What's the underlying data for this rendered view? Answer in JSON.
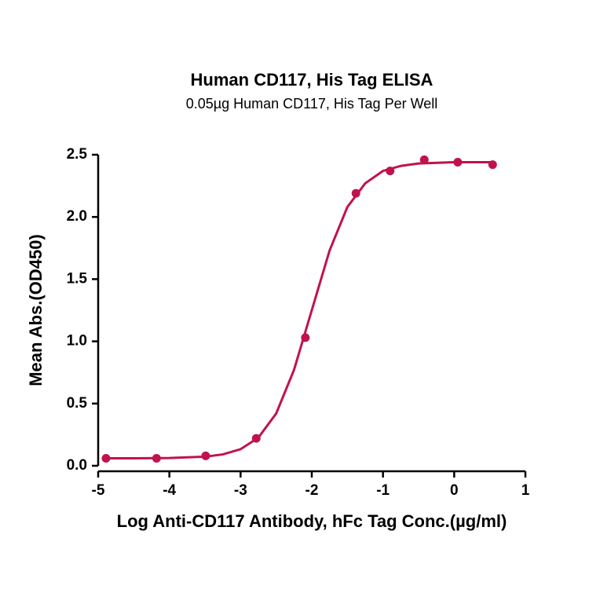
{
  "chart_data": {
    "type": "scatter",
    "title": "Human CD117, His Tag ELISA",
    "subtitle": "0.05µg Human CD117, His Tag Per Well",
    "xlabel": "Log Anti-CD117 Antibody, hFc Tag Conc.(µg/ml)",
    "ylabel": "Mean Abs.(OD450)",
    "color": "#c0134b",
    "x": [
      -4.89,
      -4.18,
      -3.49,
      -2.78,
      -2.09,
      -1.38,
      -0.9,
      -0.42,
      0.05,
      0.54
    ],
    "values": [
      0.06,
      0.06,
      0.08,
      0.22,
      1.03,
      2.19,
      2.37,
      2.46,
      2.44,
      2.42
    ],
    "curve": {
      "x": [
        -4.89,
        -4.5,
        -4,
        -3.5,
        -3.25,
        -3,
        -2.75,
        -2.5,
        -2.25,
        -2,
        -1.75,
        -1.5,
        -1.25,
        -1,
        -0.75,
        -0.5,
        0,
        0.54
      ],
      "values": [
        0.06,
        0.06,
        0.062,
        0.073,
        0.091,
        0.133,
        0.226,
        0.42,
        0.77,
        1.25,
        1.73,
        2.08,
        2.27,
        2.37,
        2.41,
        2.43,
        2.44,
        2.44
      ]
    },
    "xlim": [
      -5,
      1
    ],
    "ylim": [
      0,
      2.5
    ],
    "xticks": [
      -5,
      -4,
      -3,
      -2,
      -1,
      0,
      1
    ],
    "yticks": [
      {
        "value": 0,
        "label": "0.0"
      },
      0.5,
      {
        "value": 1,
        "label": "1.0"
      },
      1.5,
      {
        "value": 2,
        "label": "2.0"
      },
      2.5
    ]
  }
}
